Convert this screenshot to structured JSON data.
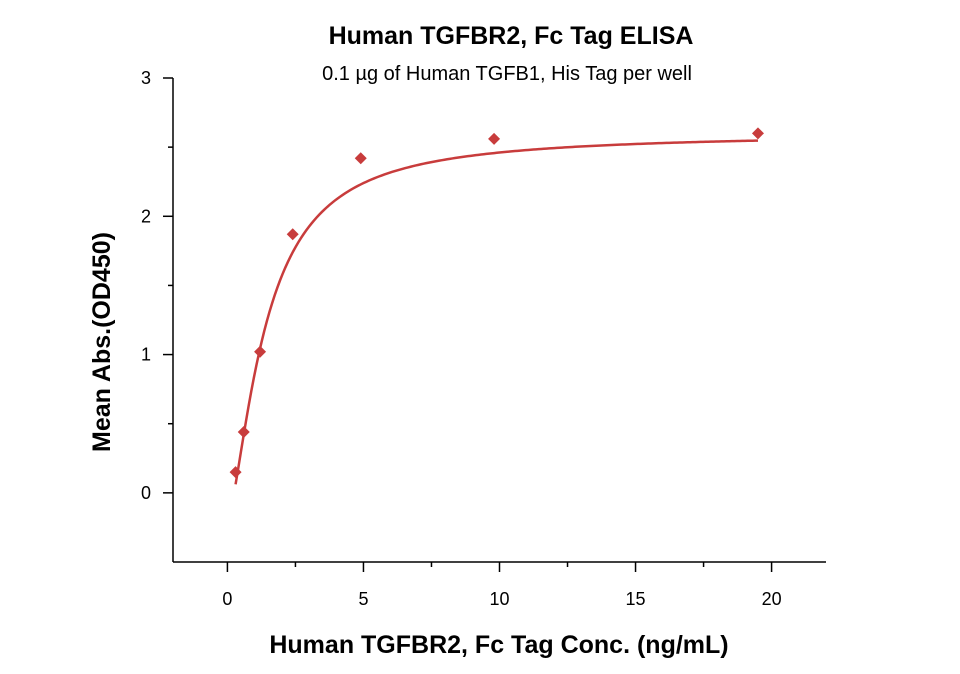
{
  "chart_data": {
    "type": "scatter",
    "title": "Human TGFBR2, Fc Tag ELISA",
    "subtitle": "0.1 µg of Human TGFB1, His Tag per well",
    "xlabel": "Human TGFBR2, Fc Tag Conc. (ng/mL)",
    "ylabel": "Mean Abs.(OD450)",
    "xlim": [
      -2,
      22
    ],
    "ylim": [
      -0.5,
      3
    ],
    "x_ticks": [
      0,
      5,
      10,
      15,
      20
    ],
    "x_tick_labels": [
      "0",
      "5",
      "10",
      "15",
      "20"
    ],
    "x_minor_ticks": [
      2.5,
      7.5,
      12.5,
      17.5
    ],
    "y_ticks": [
      0,
      1,
      2,
      3
    ],
    "y_tick_labels": [
      "0",
      "1",
      "2",
      "3"
    ],
    "y_minor_ticks": [
      0.5,
      1.5,
      2.5
    ],
    "grid": false,
    "series": [
      {
        "x": [
          0.3,
          0.6,
          1.2,
          2.4,
          4.9,
          9.8,
          19.5
        ],
        "y": [
          0.15,
          0.44,
          1.02,
          1.87,
          2.42,
          2.56,
          2.6
        ],
        "marker": "diamond",
        "color": "#c83c3c",
        "fit_curve": true
      }
    ]
  }
}
